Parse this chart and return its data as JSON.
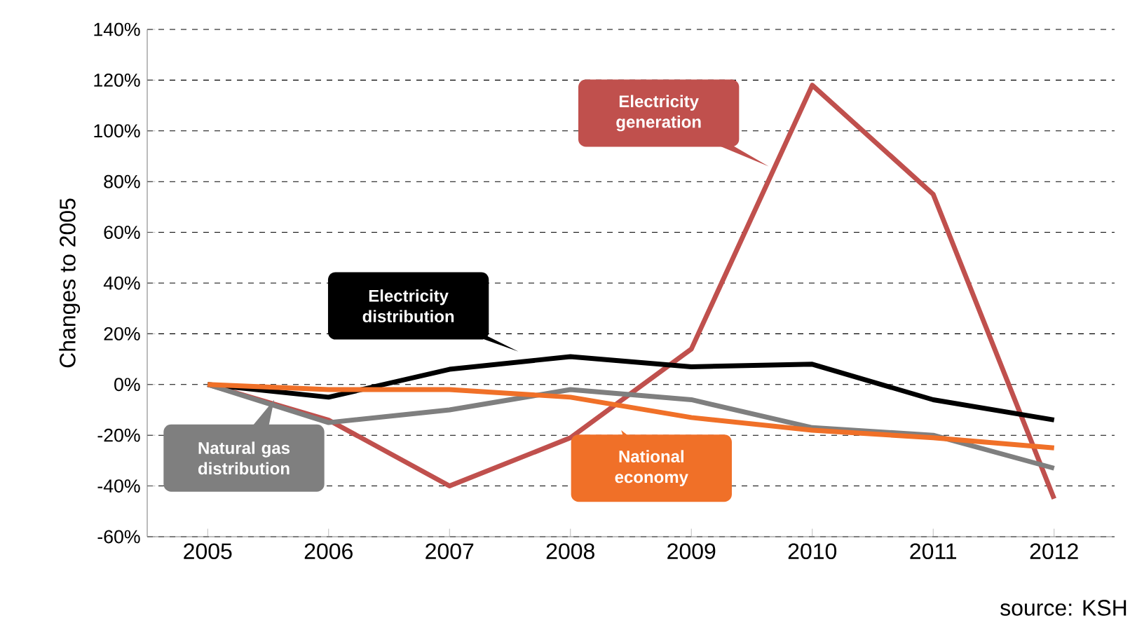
{
  "chart_data": {
    "type": "line",
    "ylabel": "Changes to 2005",
    "categories": [
      "2005",
      "2006",
      "2007",
      "2008",
      "2009",
      "2010",
      "2011",
      "2012"
    ],
    "series": [
      {
        "name": "Electricity generation",
        "color": "#c0504d",
        "values": [
          0,
          -14,
          -40,
          -21,
          14,
          118,
          75,
          -45
        ]
      },
      {
        "name": "Electricity distribution",
        "color": "#000000",
        "values": [
          0,
          -5,
          6,
          11,
          7,
          8,
          -6,
          -14
        ]
      },
      {
        "name": "Natural gas distribution",
        "color": "#7f7f7f",
        "values": [
          0,
          -15,
          -10,
          -2,
          -6,
          -17,
          -20,
          -33
        ]
      },
      {
        "name": "National economy",
        "color": "#f07028",
        "values": [
          0,
          -2,
          -2,
          -5,
          -13,
          -18,
          -21,
          -25
        ]
      }
    ],
    "ylim": [
      -60,
      140
    ],
    "yticks": [
      {
        "value": -60,
        "label": "-60%"
      },
      {
        "value": -40,
        "label": "-40%"
      },
      {
        "value": -20,
        "label": "-20%"
      },
      {
        "value": 0,
        "label": "0%"
      },
      {
        "value": 20,
        "label": "20%"
      },
      {
        "value": 40,
        "label": "40%"
      },
      {
        "value": 60,
        "label": "60%"
      },
      {
        "value": 80,
        "label": "80%"
      },
      {
        "value": 100,
        "label": "100%"
      },
      {
        "value": 120,
        "label": "120%"
      },
      {
        "value": 140,
        "label": "140%"
      }
    ],
    "grid": "y",
    "legend": false,
    "marker": "none",
    "line_style": "solid",
    "annotations": [
      "source: KSH"
    ]
  }
}
